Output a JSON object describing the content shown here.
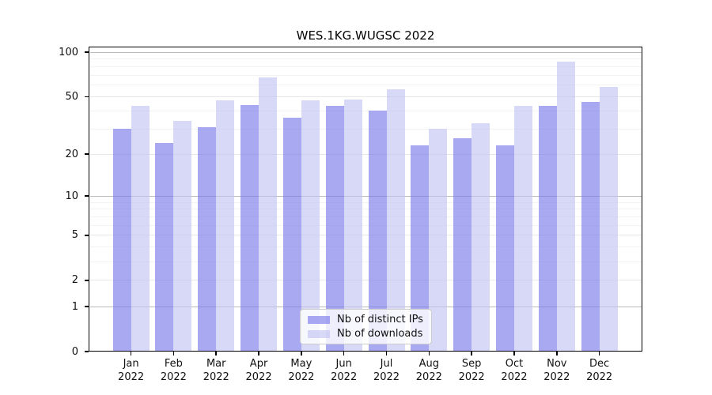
{
  "page": {
    "background": "#ffffff"
  },
  "chart_data": {
    "type": "bar",
    "title": "WES.1KG.WUGSC 2022",
    "categories": [
      "Jan",
      "Feb",
      "Mar",
      "Apr",
      "May",
      "Jun",
      "Jul",
      "Aug",
      "Sep",
      "Oct",
      "Nov",
      "Dec"
    ],
    "year_label": "2022",
    "series": [
      {
        "name": "Nb of distinct IPs",
        "color": "#7676ea",
        "alpha": 0.63,
        "values": [
          30,
          24,
          31,
          44,
          36,
          43,
          40,
          23,
          26,
          23,
          43,
          46
        ]
      },
      {
        "name": "Nb of downloads",
        "color": "#c1c1f3",
        "alpha": 0.63,
        "values": [
          43,
          34,
          47,
          68,
          47,
          48,
          56,
          30,
          33,
          43,
          86,
          58
        ]
      }
    ],
    "xlabel": "",
    "ylabel": "",
    "yscale": "log1p",
    "ylim": [
      0,
      110
    ],
    "yticks_major": [
      0,
      1,
      2,
      5,
      10,
      20,
      50,
      100
    ],
    "yticks_minor": [
      3,
      4,
      6,
      7,
      8,
      9,
      30,
      40,
      60,
      70,
      80,
      90
    ],
    "grid": true,
    "legend_position": "lower center"
  },
  "colors": {
    "bar_ips": "#7676ea",
    "bar_downloads": "#c1c1f3",
    "grid_decade": "#bbbbbb",
    "grid_major": "#e7e7e7",
    "grid_minor": "#f3f3f3",
    "axis": "#000000",
    "text": "#111111",
    "legend_border": "#cccccc"
  }
}
